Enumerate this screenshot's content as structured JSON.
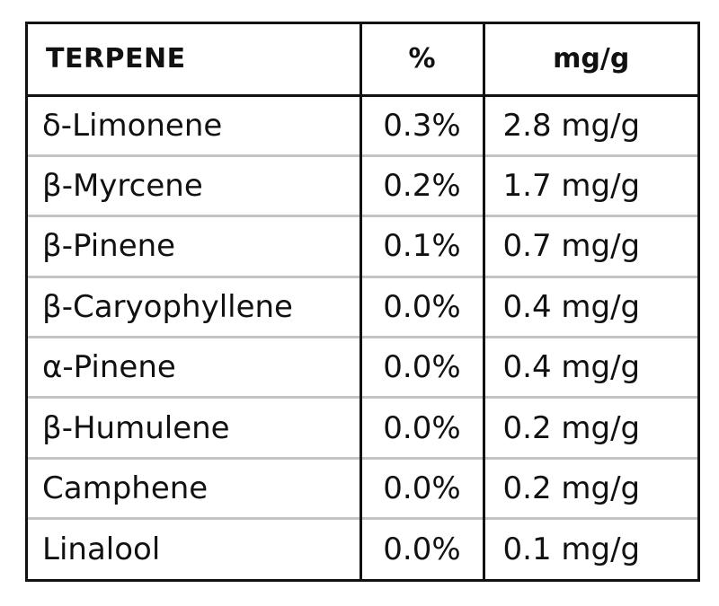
{
  "table": {
    "headers": {
      "terpene": "TERPENE",
      "percent": "%",
      "mg_per_g": "mg/g"
    },
    "rows": [
      {
        "terpene": "δ-Limonene",
        "percent": "0.3%",
        "mg_per_g": "2.8 mg/g"
      },
      {
        "terpene": "β-Myrcene",
        "percent": "0.2%",
        "mg_per_g": "1.7 mg/g"
      },
      {
        "terpene": "β-Pinene",
        "percent": "0.1%",
        "mg_per_g": "0.7 mg/g"
      },
      {
        "terpene": "β-Caryophyllene",
        "percent": "0.0%",
        "mg_per_g": "0.4 mg/g"
      },
      {
        "terpene": "α-Pinene",
        "percent": "0.0%",
        "mg_per_g": "0.4 mg/g"
      },
      {
        "terpene": "β-Humulene",
        "percent": "0.0%",
        "mg_per_g": "0.2 mg/g"
      },
      {
        "terpene": "Camphene",
        "percent": "0.0%",
        "mg_per_g": "0.2 mg/g"
      },
      {
        "terpene": "Linalool",
        "percent": "0.0%",
        "mg_per_g": "0.1 mg/g"
      }
    ]
  },
  "colors": {
    "border": "#111111",
    "row_divider": "#c4c4c4",
    "text": "#111111",
    "background": "#ffffff"
  }
}
